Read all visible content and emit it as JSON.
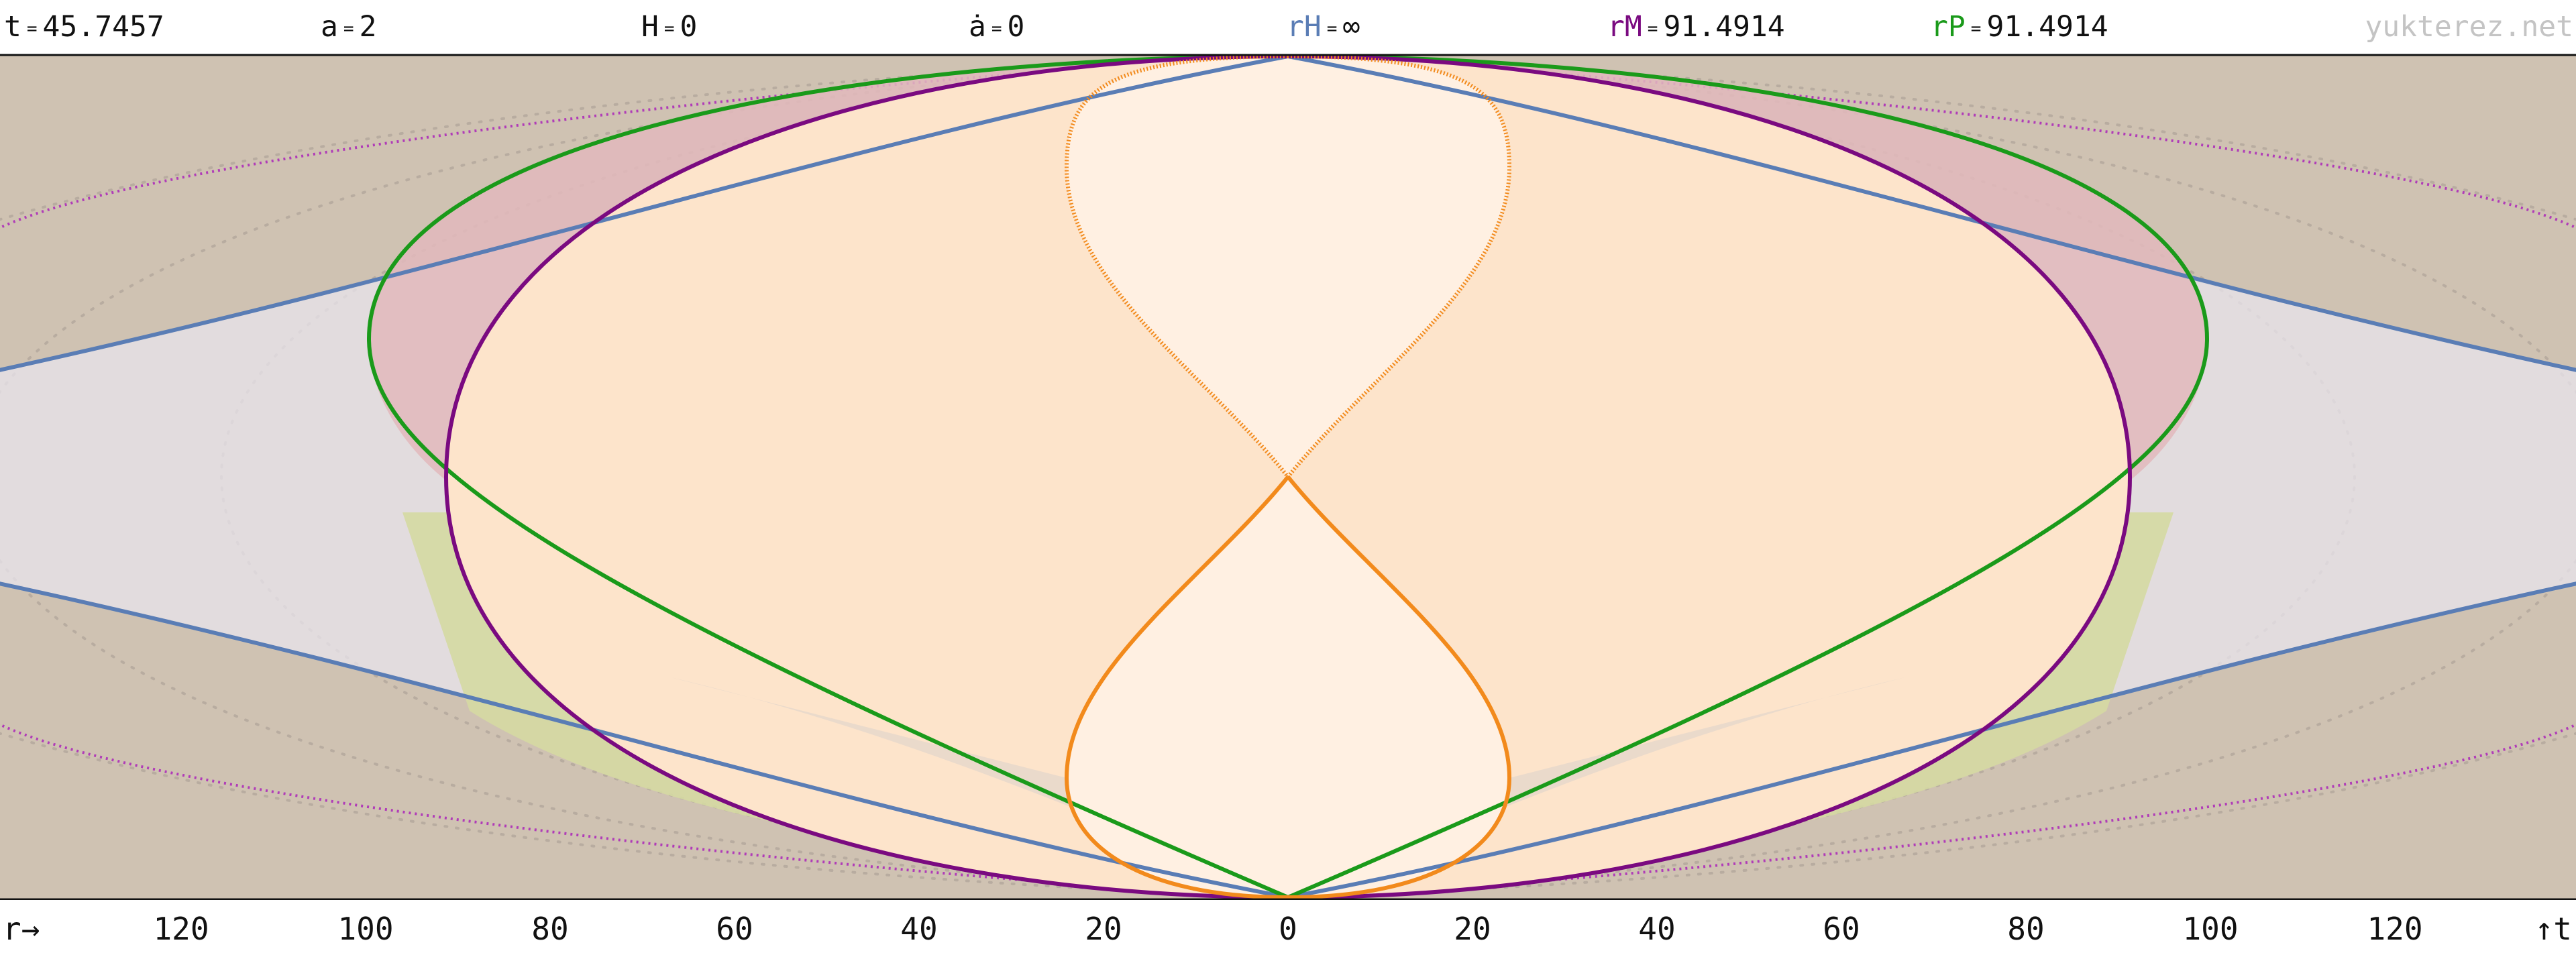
{
  "header": {
    "t": {
      "label": "t",
      "value": "45.7457"
    },
    "a": {
      "label": "a",
      "value": "2"
    },
    "H": {
      "label": "H",
      "value": "0"
    },
    "adot": {
      "label": "ȧ",
      "value": "0"
    },
    "rH": {
      "label": "rH",
      "value": "∞",
      "color": "#5a7db5"
    },
    "rM": {
      "label": "rM",
      "value": "91.4914",
      "color": "#7a0a80"
    },
    "rP": {
      "label": "rP",
      "value": "91.4914",
      "color": "#1a9a1a"
    },
    "watermark": "yukterez.net"
  },
  "axis": {
    "r_label": "r→",
    "t_label": "↑t",
    "ticks": [
      "120",
      "100",
      "80",
      "60",
      "40",
      "20",
      "0",
      "20",
      "40",
      "60",
      "80",
      "100",
      "120"
    ],
    "tick_values": [
      -120,
      -100,
      -80,
      -60,
      -40,
      -20,
      0,
      20,
      40,
      60,
      80,
      100,
      120
    ]
  },
  "colors": {
    "background": "#cfc2b2",
    "hubble": "#5a7db5",
    "particle": "#7a0a80",
    "photon": "#1a9a1a",
    "lightcone": "#f28a1c",
    "fill_inner": "#fff0e2",
    "fill_mid": "#fde4cb",
    "fill_red": "#e2b8bc",
    "fill_yellow": "#d5d9a2",
    "fill_lavender": "#e8e4ec",
    "grid": "#b8aca0"
  }
}
